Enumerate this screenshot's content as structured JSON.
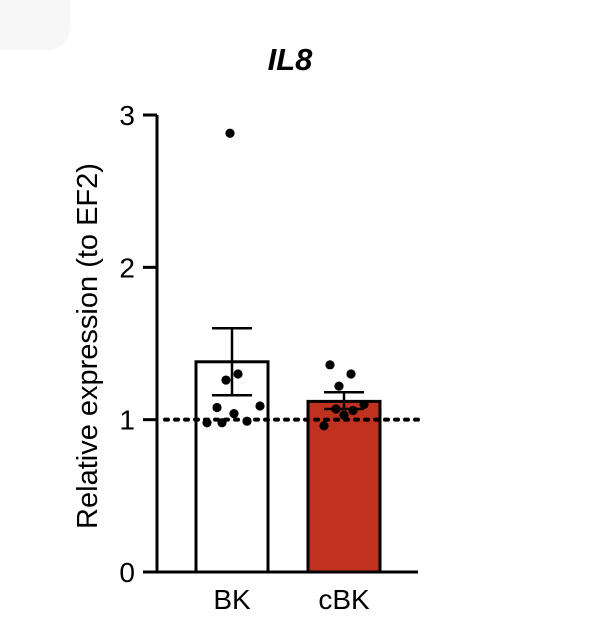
{
  "chart_data": {
    "type": "bar",
    "title": "IL8",
    "xlabel": "",
    "ylabel": "Relative expression (to EF2)",
    "categories": [
      "BK",
      "cBK"
    ],
    "values": [
      1.38,
      1.12
    ],
    "error_upper": [
      1.6,
      1.18
    ],
    "error_lower": [
      1.16,
      1.07
    ],
    "points": [
      [
        2.88,
        1.3,
        1.26,
        1.09,
        1.08,
        1.04,
        0.99,
        0.98,
        0.98
      ],
      [
        1.36,
        1.3,
        1.22,
        1.1,
        1.07,
        1.06,
        1.03,
        0.96
      ]
    ],
    "bar_colors": [
      "#ffffff",
      "#c0311f"
    ],
    "reference_line": 1,
    "ylim": [
      0,
      3
    ],
    "yticks": [
      0,
      1,
      2,
      3
    ],
    "ytick_labels": [
      "0",
      "1",
      "2",
      "3"
    ],
    "grid": false,
    "legend": "none"
  }
}
